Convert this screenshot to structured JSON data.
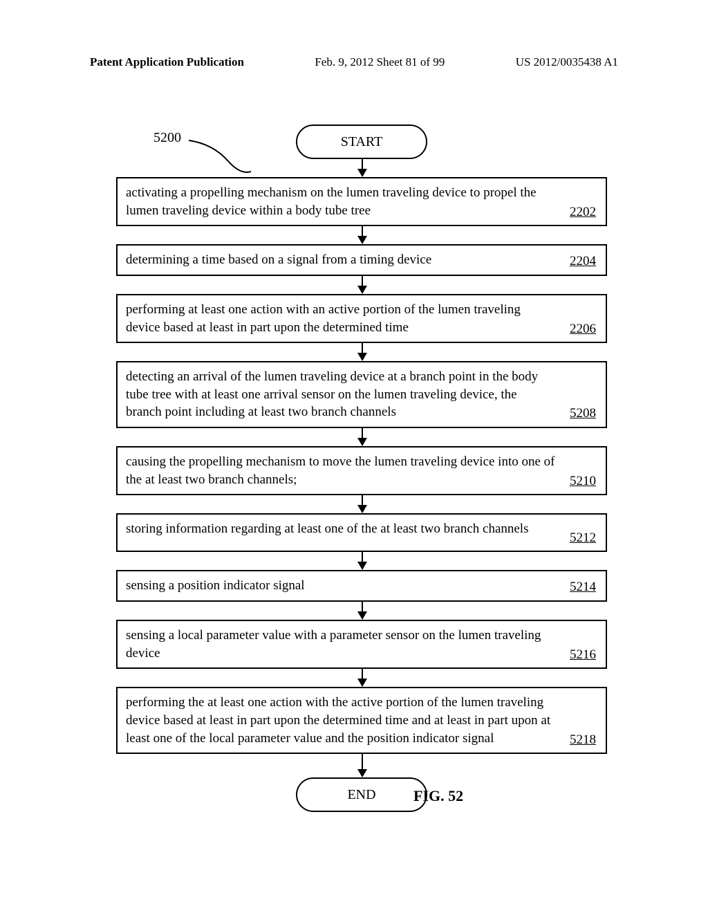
{
  "header": {
    "left": "Patent Application Publication",
    "center": "Feb. 9, 2012   Sheet 81 of 99",
    "right": "US 2012/0035438 A1"
  },
  "flowchart": {
    "ref_number": "5200",
    "start_label": "START",
    "end_label": "END",
    "fig_label": "FIG. 52",
    "steps": [
      {
        "text": "activating a propelling mechanism on the lumen traveling device to propel the lumen traveling device within a body tube tree",
        "ref": "2202",
        "lines": 2
      },
      {
        "text": "determining a time based on a signal from a timing device",
        "ref": "2204",
        "lines": 1
      },
      {
        "text": "performing at least one action with an active portion of the lumen traveling device based at least in part upon the determined time",
        "ref": "2206",
        "lines": 2
      },
      {
        "text": "detecting an arrival of the lumen traveling device at a branch point in the body tube tree with at least one arrival sensor on the lumen traveling device, the branch point including at least two branch channels",
        "ref": "5208",
        "lines": 3
      },
      {
        "text": "causing the propelling mechanism to move the lumen traveling device into one of the at least two branch channels;",
        "ref": "5210",
        "lines": 2
      },
      {
        "text": "storing information regarding at least one of the at least two branch channels",
        "ref": "5212",
        "lines": 1,
        "ref_below": true
      },
      {
        "text": "sensing a position indicator signal",
        "ref": "5214",
        "lines": 1
      },
      {
        "text": "sensing a local parameter value with a parameter sensor on the lumen traveling device",
        "ref": "5216",
        "lines": 2
      },
      {
        "text": "performing the at least one action with the active portion of the lumen traveling device based at least in part upon the determined time and at least in part upon at least one of the local parameter value and the position indicator signal",
        "ref": "5218",
        "lines": 3
      }
    ],
    "colors": {
      "line": "#000000",
      "background": "#ffffff",
      "text": "#000000"
    },
    "box_border_width": 2,
    "font_family": "Times New Roman",
    "body_fontsize": 19,
    "ref_fontsize": 19,
    "terminal_fontsize": 20,
    "arrow_shaft_short": 14,
    "arrow_shaft_default": 18
  }
}
